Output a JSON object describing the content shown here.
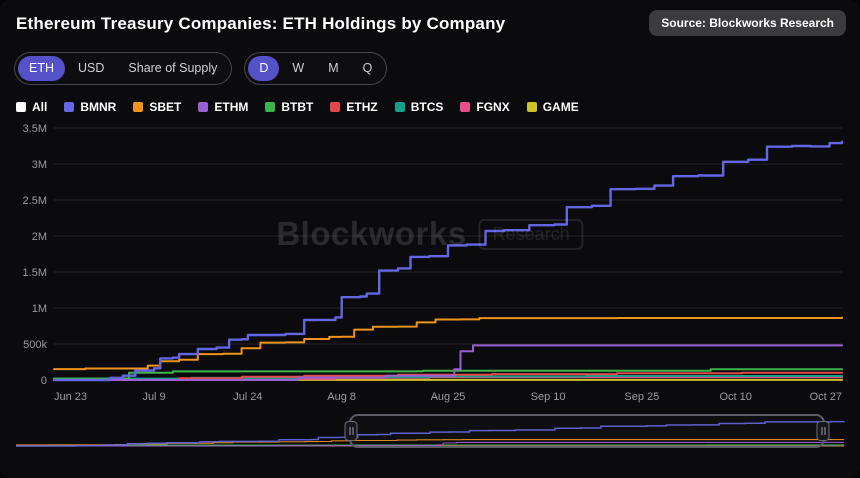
{
  "colors": {
    "accent": "#5551c9",
    "badge_bg": "#3a3a3f",
    "background": "#0b0b0e"
  },
  "header": {
    "title": "Ethereum Treasury Companies: ETH Holdings by Company",
    "source_badge": "Source: Blockworks Research"
  },
  "controls": {
    "unit_toggle": {
      "options": [
        "ETH",
        "USD",
        "Share of Supply"
      ],
      "selected": "ETH"
    },
    "interval_toggle": {
      "options": [
        "D",
        "W",
        "M",
        "Q"
      ],
      "selected": "D"
    }
  },
  "legend": {
    "items": [
      {
        "label": "All",
        "color": "#ffffff"
      },
      {
        "label": "BMNR",
        "color": "#6466e3"
      },
      {
        "label": "SBET",
        "color": "#f0941d"
      },
      {
        "label": "ETHM",
        "color": "#9a5fd0"
      },
      {
        "label": "BTBT",
        "color": "#3db54a"
      },
      {
        "label": "ETHZ",
        "color": "#e0484d"
      },
      {
        "label": "BTCS",
        "color": "#16a08c"
      },
      {
        "label": "FGNX",
        "color": "#e54f8a"
      },
      {
        "label": "GAME",
        "color": "#cfc32a"
      }
    ]
  },
  "watermark": {
    "brand": "Blockworks",
    "tag": "Research"
  },
  "navigator": {
    "start_pct": 40.3,
    "end_pct": 97.5
  },
  "chart_data": {
    "type": "line",
    "title": "Ethereum Treasury Companies: ETH Holdings by Company",
    "xlabel": "",
    "ylabel": "ETH",
    "ylim": [
      0,
      3500000
    ],
    "x_max_day": 126,
    "x_tick_days": [
      0,
      16,
      31,
      46,
      63,
      79,
      94,
      109,
      126
    ],
    "x_tick_labels": [
      "Jun 23",
      "Jul 9",
      "Jul 24",
      "Aug 8",
      "Aug 25",
      "Sep 10",
      "Sep 25",
      "Oct 10",
      "Oct 27"
    ],
    "y_tick_values": [
      0,
      500000,
      1000000,
      1500000,
      2000000,
      2500000,
      3000000,
      3500000
    ],
    "y_tick_labels": [
      "0",
      "500k",
      "1M",
      "1.5M",
      "2M",
      "2.5M",
      "3M",
      "3.5M"
    ],
    "grid": true,
    "legend_position": "top",
    "series": [
      {
        "name": "BMNR",
        "color": "#6466e3",
        "points": [
          [
            0,
            0
          ],
          [
            8,
            0
          ],
          [
            9,
            30000
          ],
          [
            11,
            60000
          ],
          [
            13,
            130000
          ],
          [
            16,
            163000
          ],
          [
            17,
            300000
          ],
          [
            19,
            310000
          ],
          [
            20,
            360000
          ],
          [
            23,
            430000
          ],
          [
            26,
            450000
          ],
          [
            28,
            560000
          ],
          [
            30,
            565000
          ],
          [
            31,
            625000
          ],
          [
            35,
            625000
          ],
          [
            37,
            640000
          ],
          [
            40,
            833000
          ],
          [
            42,
            835000
          ],
          [
            45,
            870000
          ],
          [
            46,
            1150000
          ],
          [
            49,
            1160000
          ],
          [
            50,
            1200000
          ],
          [
            52,
            1520000
          ],
          [
            55,
            1550000
          ],
          [
            57,
            1710000
          ],
          [
            60,
            1720000
          ],
          [
            63,
            1870000
          ],
          [
            66,
            1880000
          ],
          [
            69,
            2070000
          ],
          [
            72,
            2080000
          ],
          [
            76,
            2150000
          ],
          [
            80,
            2160000
          ],
          [
            82,
            2400000
          ],
          [
            86,
            2420000
          ],
          [
            89,
            2650000
          ],
          [
            93,
            2655000
          ],
          [
            96,
            2700000
          ],
          [
            99,
            2830000
          ],
          [
            103,
            2840000
          ],
          [
            107,
            3030000
          ],
          [
            111,
            3060000
          ],
          [
            114,
            3240000
          ],
          [
            118,
            3250000
          ],
          [
            121,
            3245000
          ],
          [
            124,
            3290000
          ],
          [
            126,
            3310000
          ]
        ]
      },
      {
        "name": "SBET",
        "color": "#f0941d",
        "points": [
          [
            0,
            152000
          ],
          [
            5,
            160000
          ],
          [
            13,
            160000
          ],
          [
            15,
            200000
          ],
          [
            17,
            260000
          ],
          [
            20,
            280000
          ],
          [
            23,
            360000
          ],
          [
            27,
            365000
          ],
          [
            30,
            440000
          ],
          [
            33,
            520000
          ],
          [
            37,
            522000
          ],
          [
            40,
            570000
          ],
          [
            44,
            598000
          ],
          [
            46,
            600000
          ],
          [
            48,
            700000
          ],
          [
            51,
            740000
          ],
          [
            55,
            742000
          ],
          [
            58,
            800000
          ],
          [
            61,
            840000
          ],
          [
            65,
            842000
          ],
          [
            68,
            860000
          ],
          [
            90,
            861000
          ],
          [
            126,
            866000
          ]
        ]
      },
      {
        "name": "ETHM",
        "color": "#9a5fd0",
        "points": [
          [
            0,
            0
          ],
          [
            38,
            0
          ],
          [
            39,
            35000
          ],
          [
            52,
            35000
          ],
          [
            53,
            60000
          ],
          [
            62,
            60000
          ],
          [
            64,
            150000
          ],
          [
            65,
            400000
          ],
          [
            67,
            480000
          ],
          [
            126,
            483000
          ]
        ]
      },
      {
        "name": "BTBT",
        "color": "#3db54a",
        "points": [
          [
            0,
            21000
          ],
          [
            11,
            21000
          ],
          [
            12,
            100000
          ],
          [
            18,
            102000
          ],
          [
            19,
            120000
          ],
          [
            58,
            121000
          ],
          [
            59,
            128000
          ],
          [
            104,
            128000
          ],
          [
            105,
            150000
          ],
          [
            126,
            152000
          ]
        ]
      },
      {
        "name": "ETHZ",
        "color": "#e0484d",
        "points": [
          [
            0,
            0
          ],
          [
            18,
            0
          ],
          [
            20,
            25000
          ],
          [
            30,
            45000
          ],
          [
            40,
            60000
          ],
          [
            55,
            73000
          ],
          [
            70,
            82000
          ],
          [
            90,
            94000
          ],
          [
            110,
            100000
          ],
          [
            126,
            102000
          ]
        ]
      },
      {
        "name": "BTCS",
        "color": "#16a08c",
        "points": [
          [
            0,
            14000
          ],
          [
            10,
            20000
          ],
          [
            22,
            29000
          ],
          [
            40,
            40000
          ],
          [
            60,
            50000
          ],
          [
            85,
            55000
          ],
          [
            126,
            56000
          ]
        ]
      },
      {
        "name": "FGNX",
        "color": "#e54f8a",
        "points": [
          [
            0,
            0
          ],
          [
            28,
            0
          ],
          [
            30,
            15000
          ],
          [
            45,
            30000
          ],
          [
            60,
            40000
          ],
          [
            126,
            44000
          ]
        ]
      },
      {
        "name": "GAME",
        "color": "#cfc32a",
        "points": [
          [
            0,
            2000
          ],
          [
            126,
            5000
          ]
        ]
      }
    ]
  }
}
